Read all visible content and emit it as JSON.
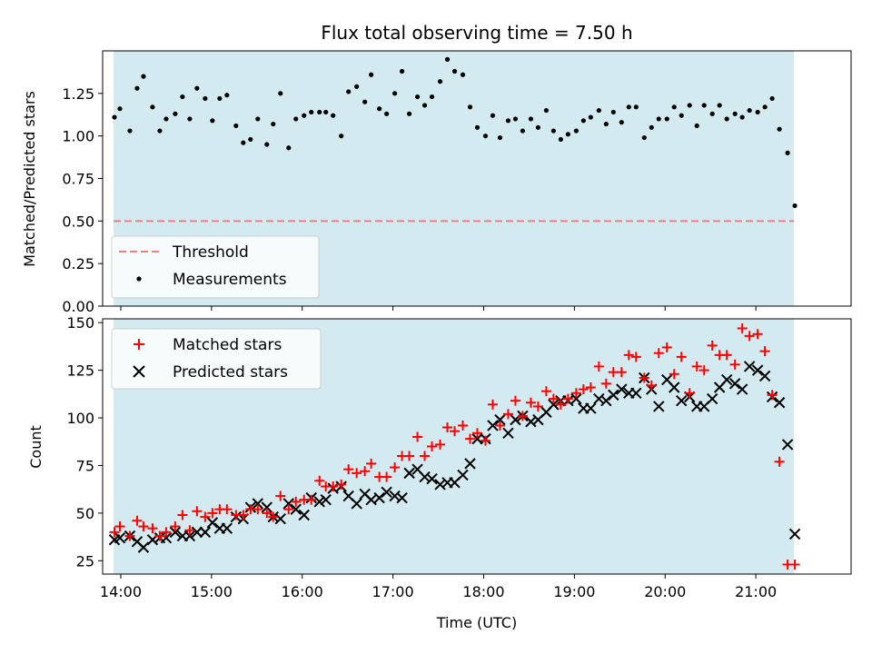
{
  "chart_data": [
    {
      "type": "scatter",
      "title": "Flux total observing time = 7.50 h",
      "ylabel": "Matched/Predicted stars",
      "xlim": [
        13.8,
        22.05
      ],
      "ylim": [
        0.0,
        1.5
      ],
      "yticks": [
        0.0,
        0.25,
        0.5,
        0.75,
        1.0,
        1.25
      ],
      "ytick_labels": [
        "0.00",
        "0.25",
        "0.50",
        "0.75",
        "1.00",
        "1.25"
      ],
      "xticks": [
        14,
        15,
        16,
        17,
        18,
        19,
        20,
        21
      ],
      "observing_window": [
        13.92,
        21.42
      ],
      "window_color": "#d3eaf0",
      "threshold": {
        "value": 0.5,
        "label": "Threshold",
        "color": "#f08080"
      },
      "legend_position": "lower-left",
      "series": [
        {
          "name": "Measurements",
          "color": "#000000",
          "x": [
            13.93,
            13.99,
            14.1,
            14.18,
            14.25,
            14.35,
            14.43,
            14.5,
            14.6,
            14.68,
            14.76,
            14.84,
            14.93,
            15.01,
            15.09,
            15.17,
            15.27,
            15.35,
            15.43,
            15.51,
            15.61,
            15.68,
            15.76,
            15.85,
            15.93,
            16.02,
            16.1,
            16.19,
            16.26,
            16.34,
            16.43,
            16.51,
            16.6,
            16.69,
            16.76,
            16.85,
            16.93,
            17.02,
            17.1,
            17.18,
            17.27,
            17.35,
            17.43,
            17.52,
            17.6,
            17.68,
            17.77,
            17.85,
            17.93,
            18.02,
            18.1,
            18.18,
            18.27,
            18.35,
            18.43,
            18.52,
            18.6,
            18.69,
            18.77,
            18.85,
            18.93,
            19.02,
            19.1,
            19.18,
            19.27,
            19.35,
            19.43,
            19.52,
            19.6,
            19.68,
            19.77,
            19.85,
            19.93,
            20.02,
            20.1,
            20.18,
            20.27,
            20.35,
            20.43,
            20.52,
            20.6,
            20.68,
            20.77,
            20.85,
            20.93,
            21.02,
            21.1,
            21.18,
            21.26,
            21.35,
            21.43
          ],
          "y": [
            1.11,
            1.16,
            1.03,
            1.28,
            1.35,
            1.17,
            1.03,
            1.1,
            1.13,
            1.23,
            1.1,
            1.28,
            1.22,
            1.09,
            1.22,
            1.24,
            1.06,
            0.96,
            0.98,
            1.1,
            0.95,
            1.07,
            1.25,
            0.93,
            1.1,
            1.12,
            1.14,
            1.14,
            1.14,
            1.12,
            1.0,
            1.26,
            1.29,
            1.2,
            1.36,
            1.16,
            1.13,
            1.25,
            1.38,
            1.13,
            1.23,
            1.18,
            1.23,
            1.32,
            1.45,
            1.38,
            1.36,
            1.17,
            1.05,
            1.0,
            1.12,
            0.99,
            1.09,
            1.1,
            1.03,
            1.1,
            1.05,
            1.15,
            1.03,
            0.98,
            1.01,
            1.03,
            1.09,
            1.11,
            1.15,
            1.07,
            1.14,
            1.08,
            1.17,
            1.17,
            0.99,
            1.05,
            1.1,
            1.1,
            1.17,
            1.12,
            1.18,
            1.06,
            1.18,
            1.13,
            1.18,
            1.1,
            1.13,
            1.11,
            1.15,
            1.14,
            1.17,
            1.22,
            1.04,
            0.9,
            0.59
          ]
        }
      ]
    },
    {
      "type": "scatter",
      "xlabel": "Time (UTC)",
      "ylabel": "Count",
      "xlim": [
        13.8,
        22.05
      ],
      "ylim": [
        18,
        152
      ],
      "yticks": [
        25,
        50,
        75,
        100,
        125,
        150
      ],
      "ytick_labels": [
        "25",
        "50",
        "75",
        "100",
        "125",
        "150"
      ],
      "xticks": [
        14,
        15,
        16,
        17,
        18,
        19,
        20,
        21
      ],
      "xtick_labels": [
        "14:00",
        "15:00",
        "16:00",
        "17:00",
        "18:00",
        "19:00",
        "20:00",
        "21:00"
      ],
      "observing_window": [
        13.92,
        21.42
      ],
      "window_color": "#d3eaf0",
      "legend_position": "upper-left",
      "series": [
        {
          "name": "Matched stars",
          "marker": "plus",
          "color": "#ff0000",
          "x": [
            13.93,
            13.99,
            14.1,
            14.18,
            14.25,
            14.35,
            14.43,
            14.5,
            14.6,
            14.68,
            14.76,
            14.84,
            14.93,
            15.01,
            15.09,
            15.17,
            15.27,
            15.35,
            15.43,
            15.51,
            15.61,
            15.68,
            15.76,
            15.85,
            15.93,
            16.02,
            16.1,
            16.19,
            16.26,
            16.34,
            16.43,
            16.51,
            16.6,
            16.69,
            16.76,
            16.85,
            16.93,
            17.02,
            17.1,
            17.18,
            17.27,
            17.35,
            17.43,
            17.52,
            17.6,
            17.68,
            17.77,
            17.85,
            17.93,
            18.02,
            18.1,
            18.18,
            18.27,
            18.35,
            18.43,
            18.52,
            18.6,
            18.69,
            18.77,
            18.85,
            18.93,
            19.02,
            19.1,
            19.18,
            19.27,
            19.35,
            19.43,
            19.52,
            19.6,
            19.68,
            19.77,
            19.85,
            19.93,
            20.02,
            20.1,
            20.18,
            20.27,
            20.35,
            20.43,
            20.52,
            20.6,
            20.68,
            20.77,
            20.85,
            20.93,
            21.02,
            21.1,
            21.18,
            21.26,
            21.35,
            21.43
          ],
          "y": [
            40,
            43,
            38,
            46,
            43,
            42,
            38,
            40,
            43,
            49,
            41,
            51,
            48,
            50,
            52,
            52,
            49,
            49,
            52,
            52,
            50,
            48,
            59,
            52,
            56,
            57,
            57,
            67,
            64,
            64,
            65,
            73,
            71,
            72,
            76,
            69,
            69,
            74,
            80,
            80,
            90,
            80,
            85,
            86,
            95,
            93,
            96,
            89,
            92,
            88,
            107,
            96,
            102,
            109,
            101,
            108,
            106,
            114,
            110,
            107,
            110,
            113,
            115,
            116,
            127,
            118,
            124,
            124,
            133,
            132,
            121,
            117,
            134,
            137,
            123,
            132,
            113,
            127,
            125,
            138,
            133,
            133,
            128,
            147,
            143,
            144,
            135,
            112,
            77,
            23,
            23
          ]
        },
        {
          "name": "Predicted stars",
          "marker": "x",
          "color": "#000000",
          "x": [
            13.93,
            13.99,
            14.1,
            14.18,
            14.25,
            14.35,
            14.43,
            14.5,
            14.6,
            14.68,
            14.76,
            14.84,
            14.93,
            15.01,
            15.09,
            15.17,
            15.27,
            15.35,
            15.43,
            15.51,
            15.61,
            15.68,
            15.76,
            15.85,
            15.93,
            16.02,
            16.1,
            16.19,
            16.26,
            16.34,
            16.43,
            16.51,
            16.6,
            16.69,
            16.76,
            16.85,
            16.93,
            17.02,
            17.1,
            17.18,
            17.27,
            17.35,
            17.43,
            17.52,
            17.6,
            17.68,
            17.77,
            17.85,
            17.93,
            18.02,
            18.1,
            18.18,
            18.27,
            18.35,
            18.43,
            18.52,
            18.6,
            18.69,
            18.77,
            18.85,
            18.93,
            19.02,
            19.1,
            19.18,
            19.27,
            19.35,
            19.43,
            19.52,
            19.6,
            19.68,
            19.77,
            19.85,
            19.93,
            20.02,
            20.1,
            20.18,
            20.27,
            20.35,
            20.43,
            20.52,
            20.6,
            20.68,
            20.77,
            20.85,
            20.93,
            21.02,
            21.1,
            21.18,
            21.26,
            21.35,
            21.43
          ],
          "y": [
            36,
            37,
            38,
            35,
            32,
            36,
            37,
            37,
            40,
            38,
            38,
            40,
            40,
            45,
            42,
            42,
            48,
            47,
            53,
            55,
            53,
            48,
            47,
            55,
            52,
            49,
            58,
            56,
            57,
            63,
            64,
            59,
            55,
            60,
            57,
            58,
            61,
            59,
            58,
            71,
            73,
            69,
            68,
            65,
            66,
            66,
            70,
            76,
            89,
            89,
            96,
            99,
            92,
            99,
            101,
            98,
            99,
            103,
            107,
            109,
            109,
            110,
            105,
            105,
            110,
            109,
            112,
            115,
            113,
            113,
            121,
            115,
            106,
            120,
            116,
            109,
            111,
            106,
            106,
            110,
            116,
            120,
            118,
            115,
            127,
            125,
            122,
            111,
            108,
            86,
            39
          ]
        }
      ]
    }
  ],
  "legend": {
    "threshold_label": "Threshold",
    "measurements_label": "Measurements",
    "matched_label": "Matched stars",
    "predicted_label": "Predicted stars"
  }
}
